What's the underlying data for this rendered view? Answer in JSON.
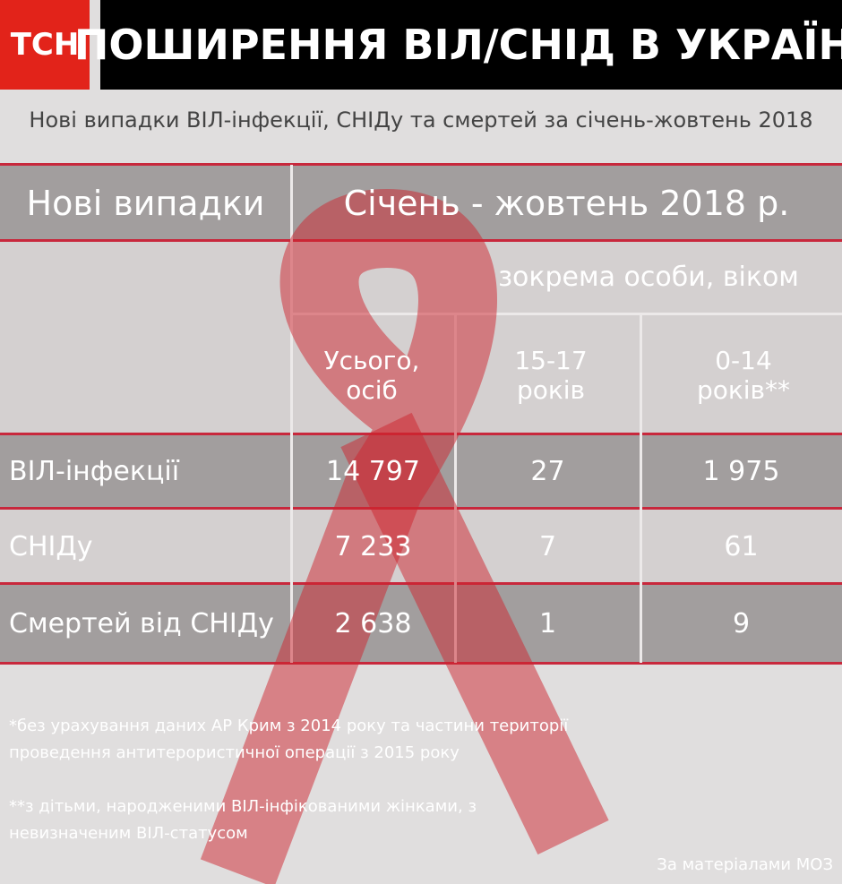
{
  "header": {
    "logo": "ТСН",
    "title": "ПОШИРЕННЯ ВІЛ/СНІД В УКРАЇНІ"
  },
  "subtitle": "Нові випадки ВІЛ-інфекції, СНІДу та смертей за січень-жовтень 2018",
  "table": {
    "header": [
      "Нові випадки",
      "Січень - жовтень 2018 р."
    ],
    "group_label": "зокрема особи, віком",
    "columns": [
      "Усього, осіб",
      "15-17 років",
      "0-14 років**"
    ],
    "rows": [
      [
        "ВІЛ-інфекції",
        "14 797",
        "27",
        "1 975"
      ],
      [
        "СНІДу",
        "7 233",
        "7",
        "61"
      ],
      [
        "Смертей від СНІДу",
        "2 638",
        "1",
        "9"
      ]
    ]
  },
  "footnotes": [
    "*без урахування даних АР Крим з 2014 року та частини території проведення антитерористичної операції з 2015 року",
    "**з дітьми, народженими ВІЛ-інфікованими жінками, з невизначеним ВІЛ-статусом"
  ],
  "source": "За матеріалами МОЗ"
}
